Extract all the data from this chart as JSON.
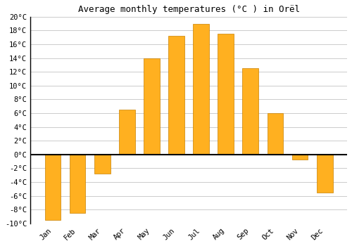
{
  "title": "Average monthly temperatures (°C ) in Orël",
  "months": [
    "Jan",
    "Feb",
    "Mar",
    "Apr",
    "May",
    "Jun",
    "Jul",
    "Aug",
    "Sep",
    "Oct",
    "Nov",
    "Dec"
  ],
  "values": [
    -9.5,
    -8.5,
    -2.8,
    6.5,
    14.0,
    17.2,
    19.0,
    17.5,
    12.5,
    6.0,
    -0.7,
    -5.5
  ],
  "bar_color": "#FFB020",
  "bar_edge_color": "#C88000",
  "background_color": "#ffffff",
  "grid_color": "#cccccc",
  "ylim": [
    -10,
    20
  ],
  "yticks": [
    -10,
    -8,
    -6,
    -4,
    -2,
    0,
    2,
    4,
    6,
    8,
    10,
    12,
    14,
    16,
    18,
    20
  ],
  "title_fontsize": 9,
  "tick_fontsize": 7.5,
  "bar_width": 0.65
}
